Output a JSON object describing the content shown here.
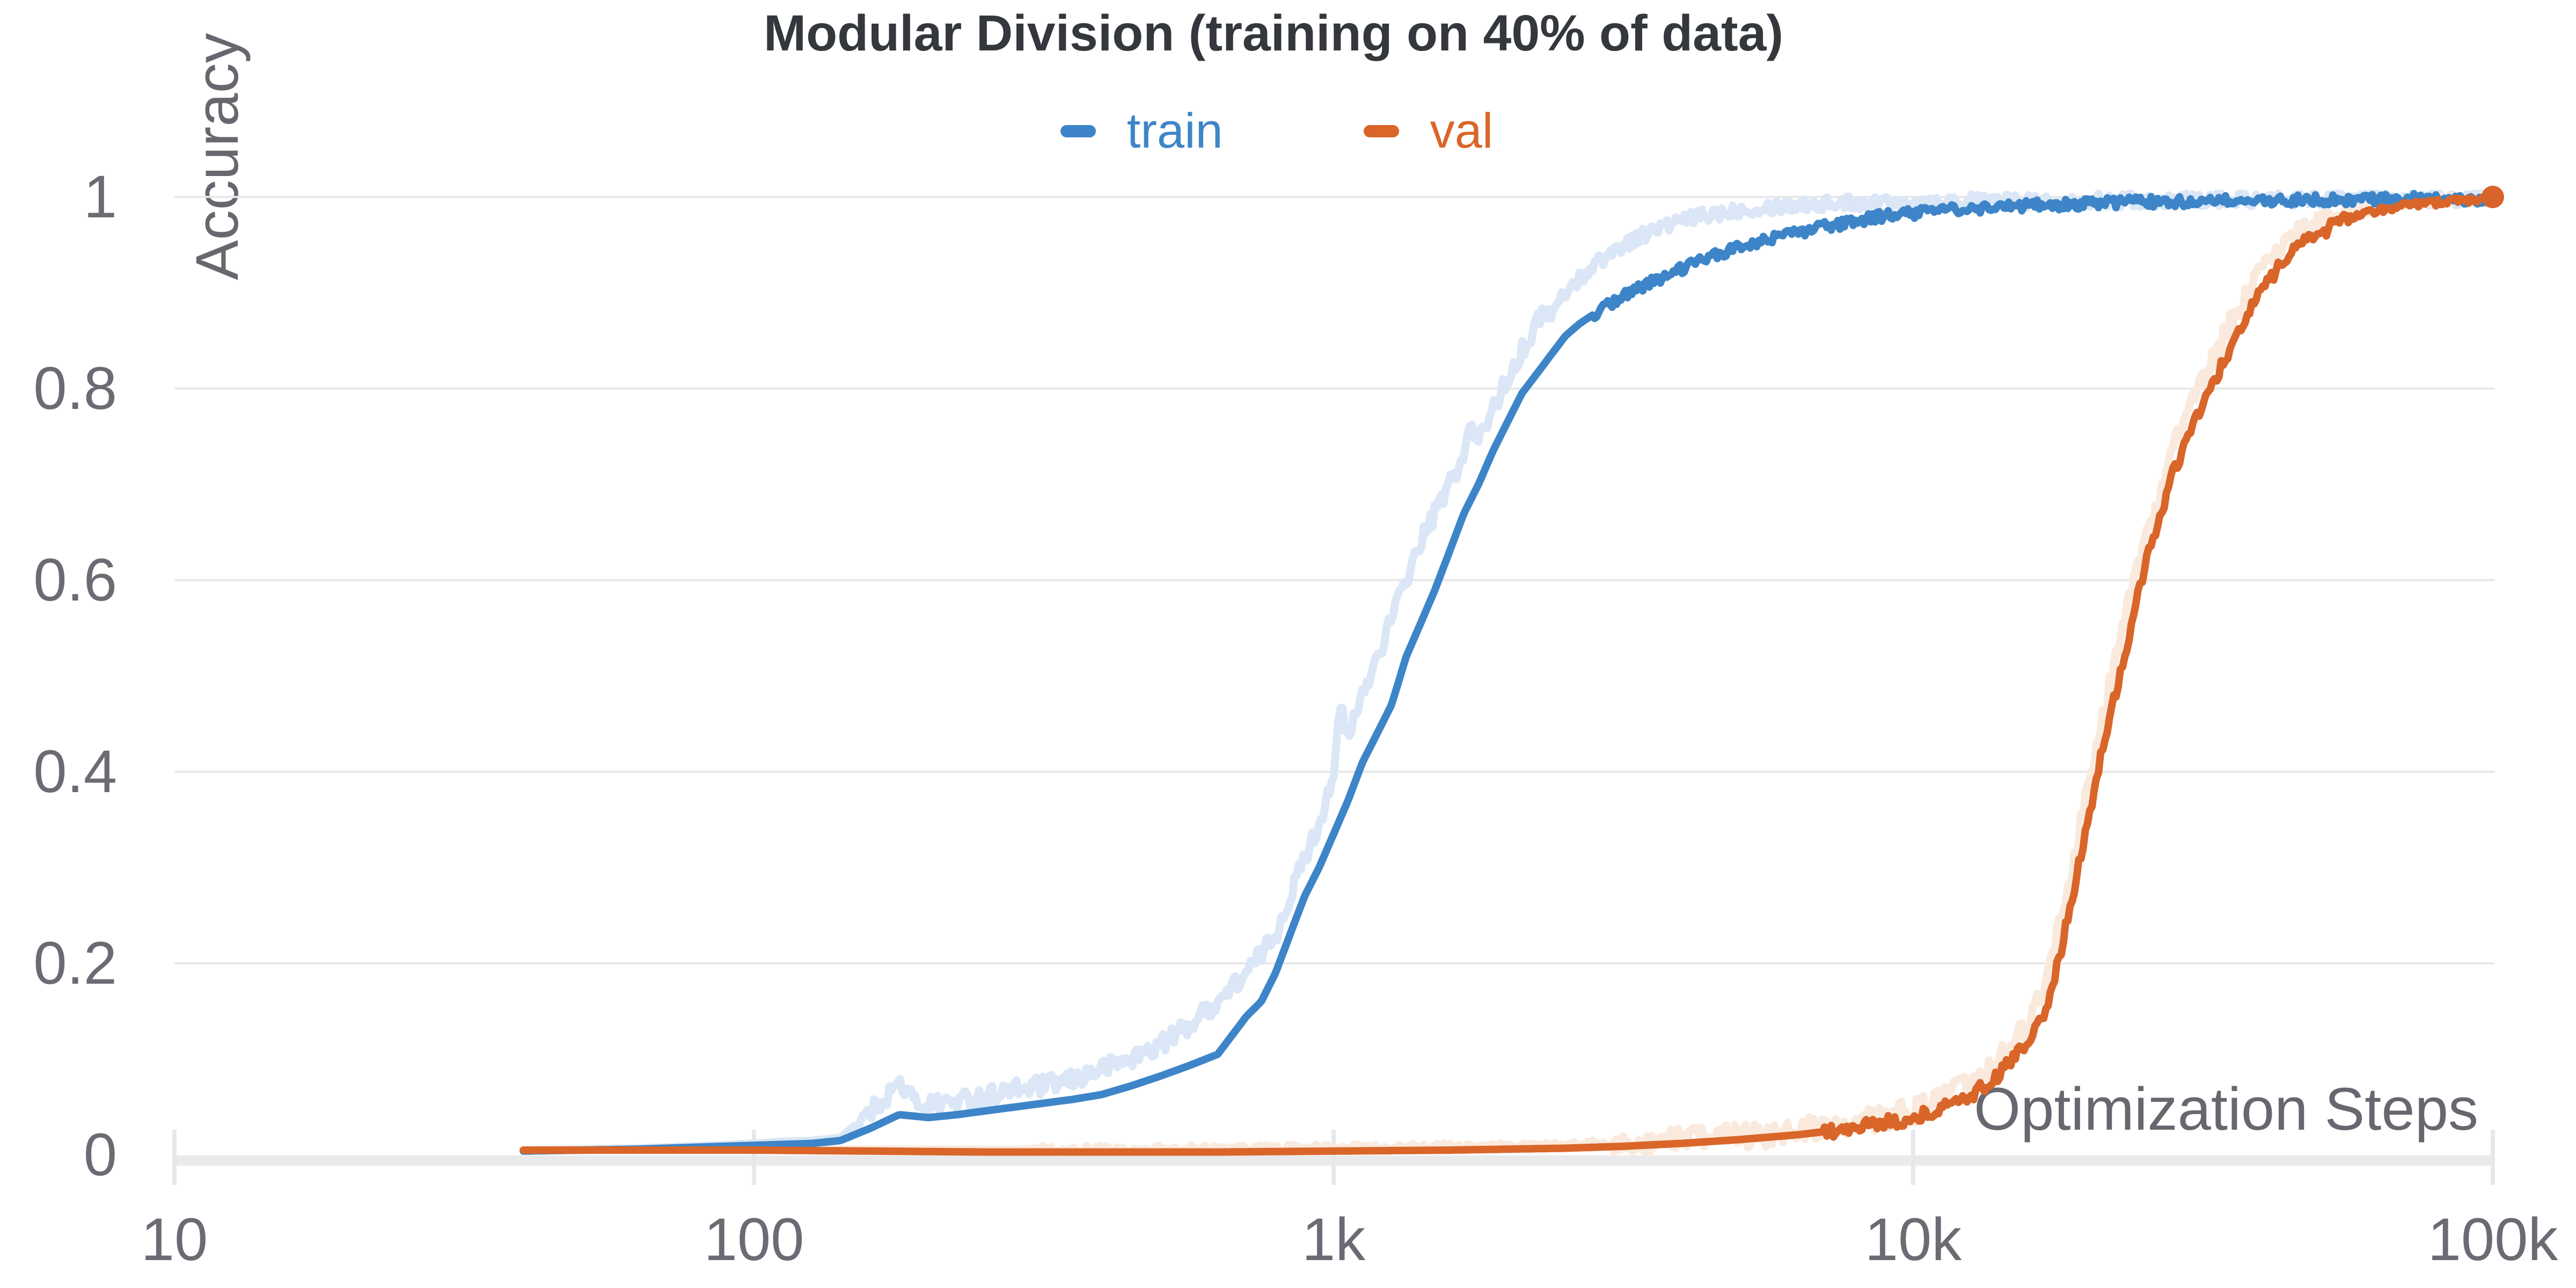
{
  "chart_data": {
    "type": "line",
    "title": "Modular Division (training on 40% of data)",
    "xlabel": "Optimization Steps",
    "ylabel": "Accuracy",
    "x_scale": "log",
    "xlim": [
      10,
      100000
    ],
    "ylim": [
      0,
      1
    ],
    "grid": "horizontal",
    "x_ticks": [
      {
        "value": 10,
        "label": "10"
      },
      {
        "value": 100,
        "label": "100"
      },
      {
        "value": 1000,
        "label": "1k"
      },
      {
        "value": 10000,
        "label": "10k"
      },
      {
        "value": 100000,
        "label": "100k"
      }
    ],
    "y_ticks": [
      {
        "value": 0,
        "label": "0"
      },
      {
        "value": 0.2,
        "label": "0.2"
      },
      {
        "value": 0.4,
        "label": "0.4"
      },
      {
        "value": 0.6,
        "label": "0.6"
      },
      {
        "value": 0.8,
        "label": "0.8"
      },
      {
        "value": 1,
        "label": "1"
      }
    ],
    "legend": {
      "position": "top",
      "entries": [
        {
          "label": "train",
          "series": "train"
        },
        {
          "label": "val",
          "series": "val"
        }
      ]
    },
    "series": [
      {
        "name": "train-raw",
        "role": "unsmoothed",
        "color": "#dbe7f6",
        "width": 15,
        "noise": [
          [
            150,
            2500,
            0.01
          ],
          [
            2500,
            100000,
            0.0075
          ]
        ],
        "points": [
          [
            40,
            0.005
          ],
          [
            50,
            0.006
          ],
          [
            63,
            0.007
          ],
          [
            79,
            0.009
          ],
          [
            100,
            0.012
          ],
          [
            112,
            0.014
          ],
          [
            126,
            0.015
          ],
          [
            141,
            0.018
          ],
          [
            159,
            0.045
          ],
          [
            178,
            0.075
          ],
          [
            190,
            0.055
          ],
          [
            200,
            0.052
          ],
          [
            224,
            0.056
          ],
          [
            251,
            0.062
          ],
          [
            282,
            0.068
          ],
          [
            316,
            0.072
          ],
          [
            355,
            0.078
          ],
          [
            398,
            0.09
          ],
          [
            447,
            0.1
          ],
          [
            501,
            0.115
          ],
          [
            562,
            0.135
          ],
          [
            631,
            0.16
          ],
          [
            708,
            0.19
          ],
          [
            794,
            0.23
          ],
          [
            841,
            0.27
          ],
          [
            891,
            0.31
          ],
          [
            944,
            0.345
          ],
          [
            1000,
            0.4
          ],
          [
            1030,
            0.47
          ],
          [
            1059,
            0.43
          ],
          [
            1090,
            0.46
          ],
          [
            1122,
            0.48
          ],
          [
            1189,
            0.52
          ],
          [
            1259,
            0.56
          ],
          [
            1334,
            0.6
          ],
          [
            1413,
            0.64
          ],
          [
            1496,
            0.67
          ],
          [
            1585,
            0.7
          ],
          [
            1679,
            0.73
          ],
          [
            1719,
            0.76
          ],
          [
            1778,
            0.745
          ],
          [
            1884,
            0.78
          ],
          [
            1995,
            0.81
          ],
          [
            2113,
            0.84
          ],
          [
            2239,
            0.865
          ],
          [
            2300,
            0.885
          ],
          [
            2371,
            0.875
          ],
          [
            2512,
            0.9
          ],
          [
            2661,
            0.915
          ],
          [
            2818,
            0.93
          ],
          [
            2985,
            0.94
          ],
          [
            3162,
            0.95
          ],
          [
            3350,
            0.958
          ],
          [
            3548,
            0.965
          ],
          [
            3758,
            0.97
          ],
          [
            3981,
            0.975
          ],
          [
            4467,
            0.982
          ],
          [
            5012,
            0.987
          ],
          [
            5623,
            0.99
          ],
          [
            6310,
            0.992
          ],
          [
            7943,
            0.994
          ],
          [
            10000,
            0.995
          ],
          [
            15849,
            0.996
          ],
          [
            25119,
            0.997
          ],
          [
            39811,
            0.9975
          ],
          [
            63096,
            0.998
          ],
          [
            100000,
            0.998
          ]
        ]
      },
      {
        "name": "val-raw",
        "role": "unsmoothed",
        "color": "#faeade",
        "width": 15,
        "noise": [
          [
            300,
            3000,
            0.004
          ],
          [
            3000,
            57000,
            0.013
          ],
          [
            57000,
            100000,
            0.005
          ]
        ],
        "points": [
          [
            40,
            0.005
          ],
          [
            100,
            0.006
          ],
          [
            251,
            0.0055
          ],
          [
            631,
            0.006
          ],
          [
            1000,
            0.007
          ],
          [
            1585,
            0.008
          ],
          [
            2512,
            0.01
          ],
          [
            3981,
            0.015
          ],
          [
            5012,
            0.019
          ],
          [
            6310,
            0.025
          ],
          [
            7943,
            0.033
          ],
          [
            10000,
            0.046
          ],
          [
            11220,
            0.057
          ],
          [
            12589,
            0.073
          ],
          [
            14125,
            0.1
          ],
          [
            15849,
            0.14
          ],
          [
            16982,
            0.18
          ],
          [
            17783,
            0.23
          ],
          [
            18836,
            0.3
          ],
          [
            19953,
            0.38
          ],
          [
            21135,
            0.45
          ],
          [
            22387,
            0.52
          ],
          [
            23714,
            0.58
          ],
          [
            25119,
            0.64
          ],
          [
            26607,
            0.69
          ],
          [
            28184,
            0.74
          ],
          [
            29854,
            0.775
          ],
          [
            31623,
            0.81
          ],
          [
            33497,
            0.84
          ],
          [
            35481,
            0.87
          ],
          [
            37584,
            0.895
          ],
          [
            39811,
            0.92
          ],
          [
            42170,
            0.94
          ],
          [
            44668,
            0.955
          ],
          [
            50119,
            0.97
          ],
          [
            56234,
            0.982
          ],
          [
            63096,
            0.99
          ],
          [
            70795,
            0.994
          ],
          [
            79433,
            0.996
          ],
          [
            89125,
            0.998
          ],
          [
            100000,
            0.999
          ]
        ]
      },
      {
        "name": "train",
        "role": "smoothed",
        "color": "#3d85c8",
        "width": 14,
        "noise": [
          [
            2800,
            100000,
            0.0055
          ]
        ],
        "points": [
          [
            40,
            0.004
          ],
          [
            50,
            0.005
          ],
          [
            63,
            0.006
          ],
          [
            79,
            0.008
          ],
          [
            100,
            0.01
          ],
          [
            112,
            0.011
          ],
          [
            126,
            0.012
          ],
          [
            141,
            0.015
          ],
          [
            159,
            0.028
          ],
          [
            178,
            0.042
          ],
          [
            200,
            0.039
          ],
          [
            224,
            0.042
          ],
          [
            251,
            0.046
          ],
          [
            282,
            0.05
          ],
          [
            316,
            0.054
          ],
          [
            355,
            0.058
          ],
          [
            398,
            0.063
          ],
          [
            447,
            0.072
          ],
          [
            501,
            0.082
          ],
          [
            562,
            0.093
          ],
          [
            631,
            0.105
          ],
          [
            708,
            0.145
          ],
          [
            750,
            0.16
          ],
          [
            794,
            0.19
          ],
          [
            841,
            0.23
          ],
          [
            891,
            0.27
          ],
          [
            944,
            0.3
          ],
          [
            1000,
            0.335
          ],
          [
            1059,
            0.37
          ],
          [
            1122,
            0.41
          ],
          [
            1189,
            0.44
          ],
          [
            1259,
            0.47
          ],
          [
            1334,
            0.52
          ],
          [
            1413,
            0.555
          ],
          [
            1496,
            0.59
          ],
          [
            1585,
            0.63
          ],
          [
            1679,
            0.67
          ],
          [
            1778,
            0.7
          ],
          [
            1884,
            0.735
          ],
          [
            1995,
            0.765
          ],
          [
            2113,
            0.795
          ],
          [
            2239,
            0.815
          ],
          [
            2371,
            0.835
          ],
          [
            2512,
            0.855
          ],
          [
            2661,
            0.868
          ],
          [
            2818,
            0.878
          ],
          [
            2985,
            0.888
          ],
          [
            3162,
            0.897
          ],
          [
            3350,
            0.905
          ],
          [
            3548,
            0.912
          ],
          [
            3758,
            0.918
          ],
          [
            3981,
            0.925
          ],
          [
            4217,
            0.931
          ],
          [
            4467,
            0.937
          ],
          [
            4732,
            0.942
          ],
          [
            5012,
            0.947
          ],
          [
            5623,
            0.956
          ],
          [
            6310,
            0.963
          ],
          [
            7079,
            0.969
          ],
          [
            7943,
            0.975
          ],
          [
            8913,
            0.98
          ],
          [
            10000,
            0.983
          ],
          [
            11220,
            0.986
          ],
          [
            12589,
            0.988
          ],
          [
            14125,
            0.99
          ],
          [
            15849,
            0.991
          ],
          [
            17783,
            0.992
          ],
          [
            19953,
            0.993
          ],
          [
            22387,
            0.994
          ],
          [
            25119,
            0.995
          ],
          [
            28184,
            0.995
          ],
          [
            31623,
            0.996
          ],
          [
            35481,
            0.996
          ],
          [
            39811,
            0.996
          ],
          [
            44668,
            0.997
          ],
          [
            50119,
            0.997
          ],
          [
            56234,
            0.997
          ],
          [
            63096,
            0.997
          ],
          [
            70795,
            0.998
          ],
          [
            79433,
            0.998
          ],
          [
            89125,
            0.998
          ],
          [
            100000,
            0.998
          ]
        ]
      },
      {
        "name": "val",
        "role": "smoothed",
        "color": "#d96529",
        "width": 14,
        "noise": [
          [
            7000,
            57000,
            0.007
          ],
          [
            57000,
            100000,
            0.0035
          ]
        ],
        "points": [
          [
            40,
            0.005
          ],
          [
            63,
            0.005
          ],
          [
            100,
            0.005
          ],
          [
            158,
            0.004
          ],
          [
            251,
            0.003
          ],
          [
            398,
            0.003
          ],
          [
            631,
            0.003
          ],
          [
            1000,
            0.004
          ],
          [
            1585,
            0.005
          ],
          [
            2512,
            0.007
          ],
          [
            3162,
            0.009
          ],
          [
            3981,
            0.012
          ],
          [
            5012,
            0.016
          ],
          [
            6310,
            0.021
          ],
          [
            7943,
            0.028
          ],
          [
            10000,
            0.039
          ],
          [
            11220,
            0.048
          ],
          [
            12589,
            0.062
          ],
          [
            14125,
            0.085
          ],
          [
            15849,
            0.12
          ],
          [
            16982,
            0.155
          ],
          [
            17783,
            0.2
          ],
          [
            18836,
            0.27
          ],
          [
            19953,
            0.345
          ],
          [
            21135,
            0.42
          ],
          [
            22387,
            0.485
          ],
          [
            23714,
            0.55
          ],
          [
            25119,
            0.615
          ],
          [
            26607,
            0.665
          ],
          [
            28184,
            0.715
          ],
          [
            29854,
            0.75
          ],
          [
            31623,
            0.785
          ],
          [
            33497,
            0.815
          ],
          [
            35481,
            0.845
          ],
          [
            37584,
            0.875
          ],
          [
            39811,
            0.9
          ],
          [
            42170,
            0.922
          ],
          [
            44668,
            0.94
          ],
          [
            47315,
            0.952
          ],
          [
            50119,
            0.962
          ],
          [
            53088,
            0.97
          ],
          [
            56234,
            0.977
          ],
          [
            59566,
            0.982
          ],
          [
            63096,
            0.986
          ],
          [
            66834,
            0.989
          ],
          [
            70795,
            0.991
          ],
          [
            74989,
            0.993
          ],
          [
            79433,
            0.994
          ],
          [
            84140,
            0.995
          ],
          [
            89125,
            0.996
          ],
          [
            94406,
            0.998
          ],
          [
            100000,
            0.999
          ]
        ]
      }
    ],
    "end_marker": {
      "series": "val",
      "x": 100000,
      "y": 1.0,
      "radius": 21,
      "color": "#d9642b"
    },
    "style": {
      "gridline_color": "#e8e8ea",
      "axis_band_color": "#eaeaec",
      "tick_label_color": "#6b6b74",
      "axis_title_color": "#67676f",
      "title_color": "#34383d",
      "background": "#ffffff"
    }
  }
}
